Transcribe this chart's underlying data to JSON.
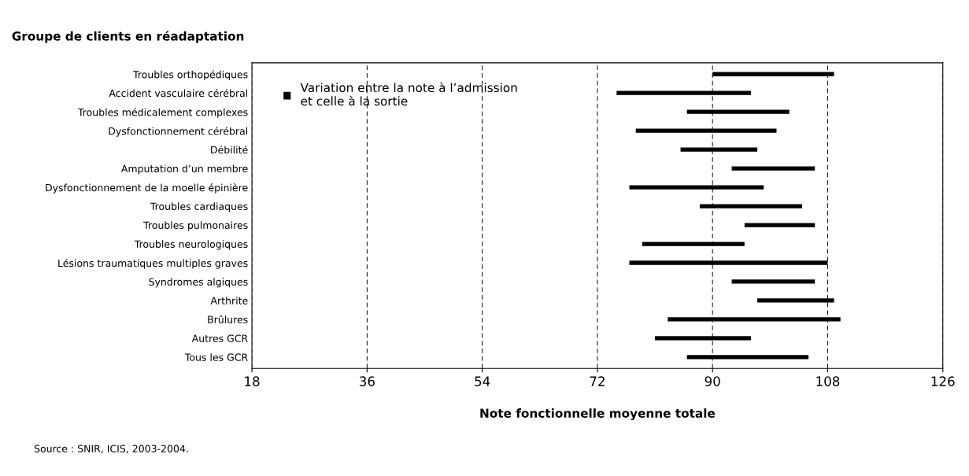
{
  "chart_data": {
    "type": "bar",
    "orientation": "horizontal",
    "title": "Groupe de clients en réadaptation",
    "xlabel": "Note fonctionnelle moyenne totale",
    "categories": [
      "Troubles orthopédiques",
      "Accident vasculaire cérébral",
      "Troubles médicalement complexes",
      "Dysfonctionnement cérébral",
      "Débilité",
      "Amputation d’un membre",
      "Dysfonctionnement de la moelle épinière",
      "Troubles cardiaques",
      "Troubles pulmonaires",
      "Troubles neurologiques",
      "Lésions traumatiques multiples graves",
      "Syndromes algiques",
      "Arthrite",
      "Brûlures",
      "Autres GCR",
      "Tous les GCR"
    ],
    "series": [
      {
        "name": "Variation entre la note à l’admission\net celle à la sortie",
        "color": "#000000",
        "base": [
          90,
          75,
          86,
          78,
          85,
          93,
          77,
          88,
          95,
          79,
          77,
          93,
          97,
          83,
          81,
          86
        ],
        "values": [
          19,
          21,
          16,
          22,
          12,
          13,
          21,
          16,
          11,
          16,
          31,
          13,
          12,
          27,
          15,
          19
        ]
      }
    ],
    "xlim": [
      18,
      126
    ],
    "xticks": [
      18,
      36,
      54,
      72,
      90,
      108,
      126
    ],
    "grid": "x",
    "line_style": "dashed",
    "legend": "top left",
    "annotations": [
      "Source : SNIR, ICIS, 2003-2004."
    ]
  }
}
